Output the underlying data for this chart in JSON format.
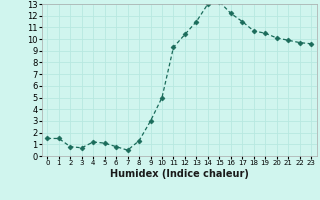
{
  "title": "",
  "xlabel": "Humidex (Indice chaleur)",
  "x": [
    0,
    1,
    2,
    3,
    4,
    5,
    6,
    7,
    8,
    9,
    10,
    11,
    12,
    13,
    14,
    15,
    16,
    17,
    18,
    19,
    20,
    21,
    22,
    23
  ],
  "y": [
    1.5,
    1.5,
    0.8,
    0.7,
    1.2,
    1.1,
    0.8,
    0.5,
    1.3,
    3.0,
    5.0,
    9.3,
    10.4,
    11.5,
    13.0,
    13.2,
    12.2,
    11.5,
    10.7,
    10.5,
    10.1,
    9.9,
    9.7,
    9.6
  ],
  "ylim": [
    0,
    13
  ],
  "xlim": [
    -0.5,
    23.5
  ],
  "line_color": "#1a6b5a",
  "marker": "D",
  "marker_size": 2.5,
  "background_color": "#d0f5ee",
  "grid_color": "#b8e8e0",
  "yticks": [
    0,
    1,
    2,
    3,
    4,
    5,
    6,
    7,
    8,
    9,
    10,
    11,
    12,
    13
  ],
  "xticks": [
    0,
    1,
    2,
    3,
    4,
    5,
    6,
    7,
    8,
    9,
    10,
    11,
    12,
    13,
    14,
    15,
    16,
    17,
    18,
    19,
    20,
    21,
    22,
    23
  ],
  "xlabel_fontsize": 7.0,
  "xlabel_fontweight": "bold",
  "xtick_fontsize": 5.0,
  "ytick_fontsize": 6.0
}
